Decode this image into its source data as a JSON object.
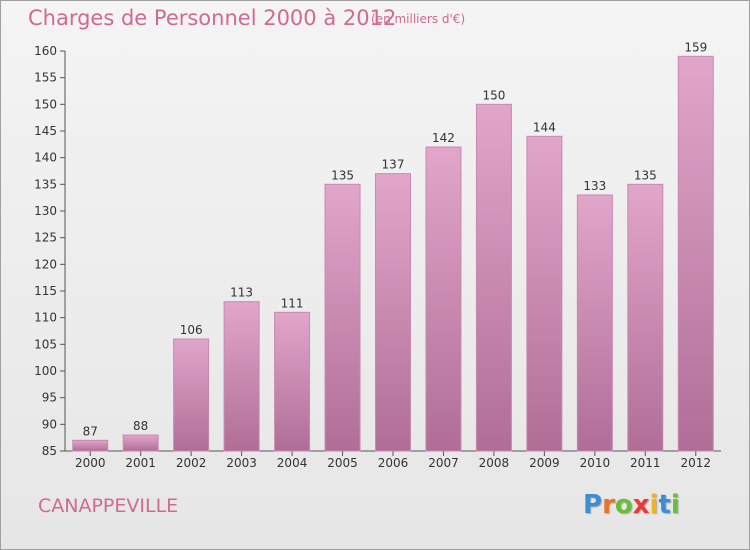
{
  "title": "Charges de Personnel 2000 à 2012",
  "subtitle": "(en milliers d'€)",
  "place": "CANAPPEVILLE",
  "logo": {
    "text": "Proxiti",
    "letter_colors": [
      "#3a8fd4",
      "#e8732a",
      "#6bbd3c",
      "#e83a3a",
      "#f0b323",
      "#3a8fd4",
      "#6bbd3c"
    ]
  },
  "colors": {
    "bar_top": "#e2a6ca",
    "bar_bottom": "#b06e96",
    "bar_edge": "#c88aae",
    "title": "#d06a92"
  },
  "chart_data": {
    "type": "bar",
    "categories": [
      "2000",
      "2001",
      "2002",
      "2003",
      "2004",
      "2005",
      "2006",
      "2007",
      "2008",
      "2009",
      "2010",
      "2011",
      "2012"
    ],
    "values": [
      87,
      88,
      106,
      113,
      111,
      135,
      137,
      142,
      150,
      144,
      133,
      135,
      159
    ],
    "ylim": [
      85,
      160
    ],
    "yticks": [
      85,
      90,
      95,
      100,
      105,
      110,
      115,
      120,
      125,
      130,
      135,
      140,
      145,
      150,
      155,
      160
    ],
    "grid": false,
    "legend": "none"
  }
}
